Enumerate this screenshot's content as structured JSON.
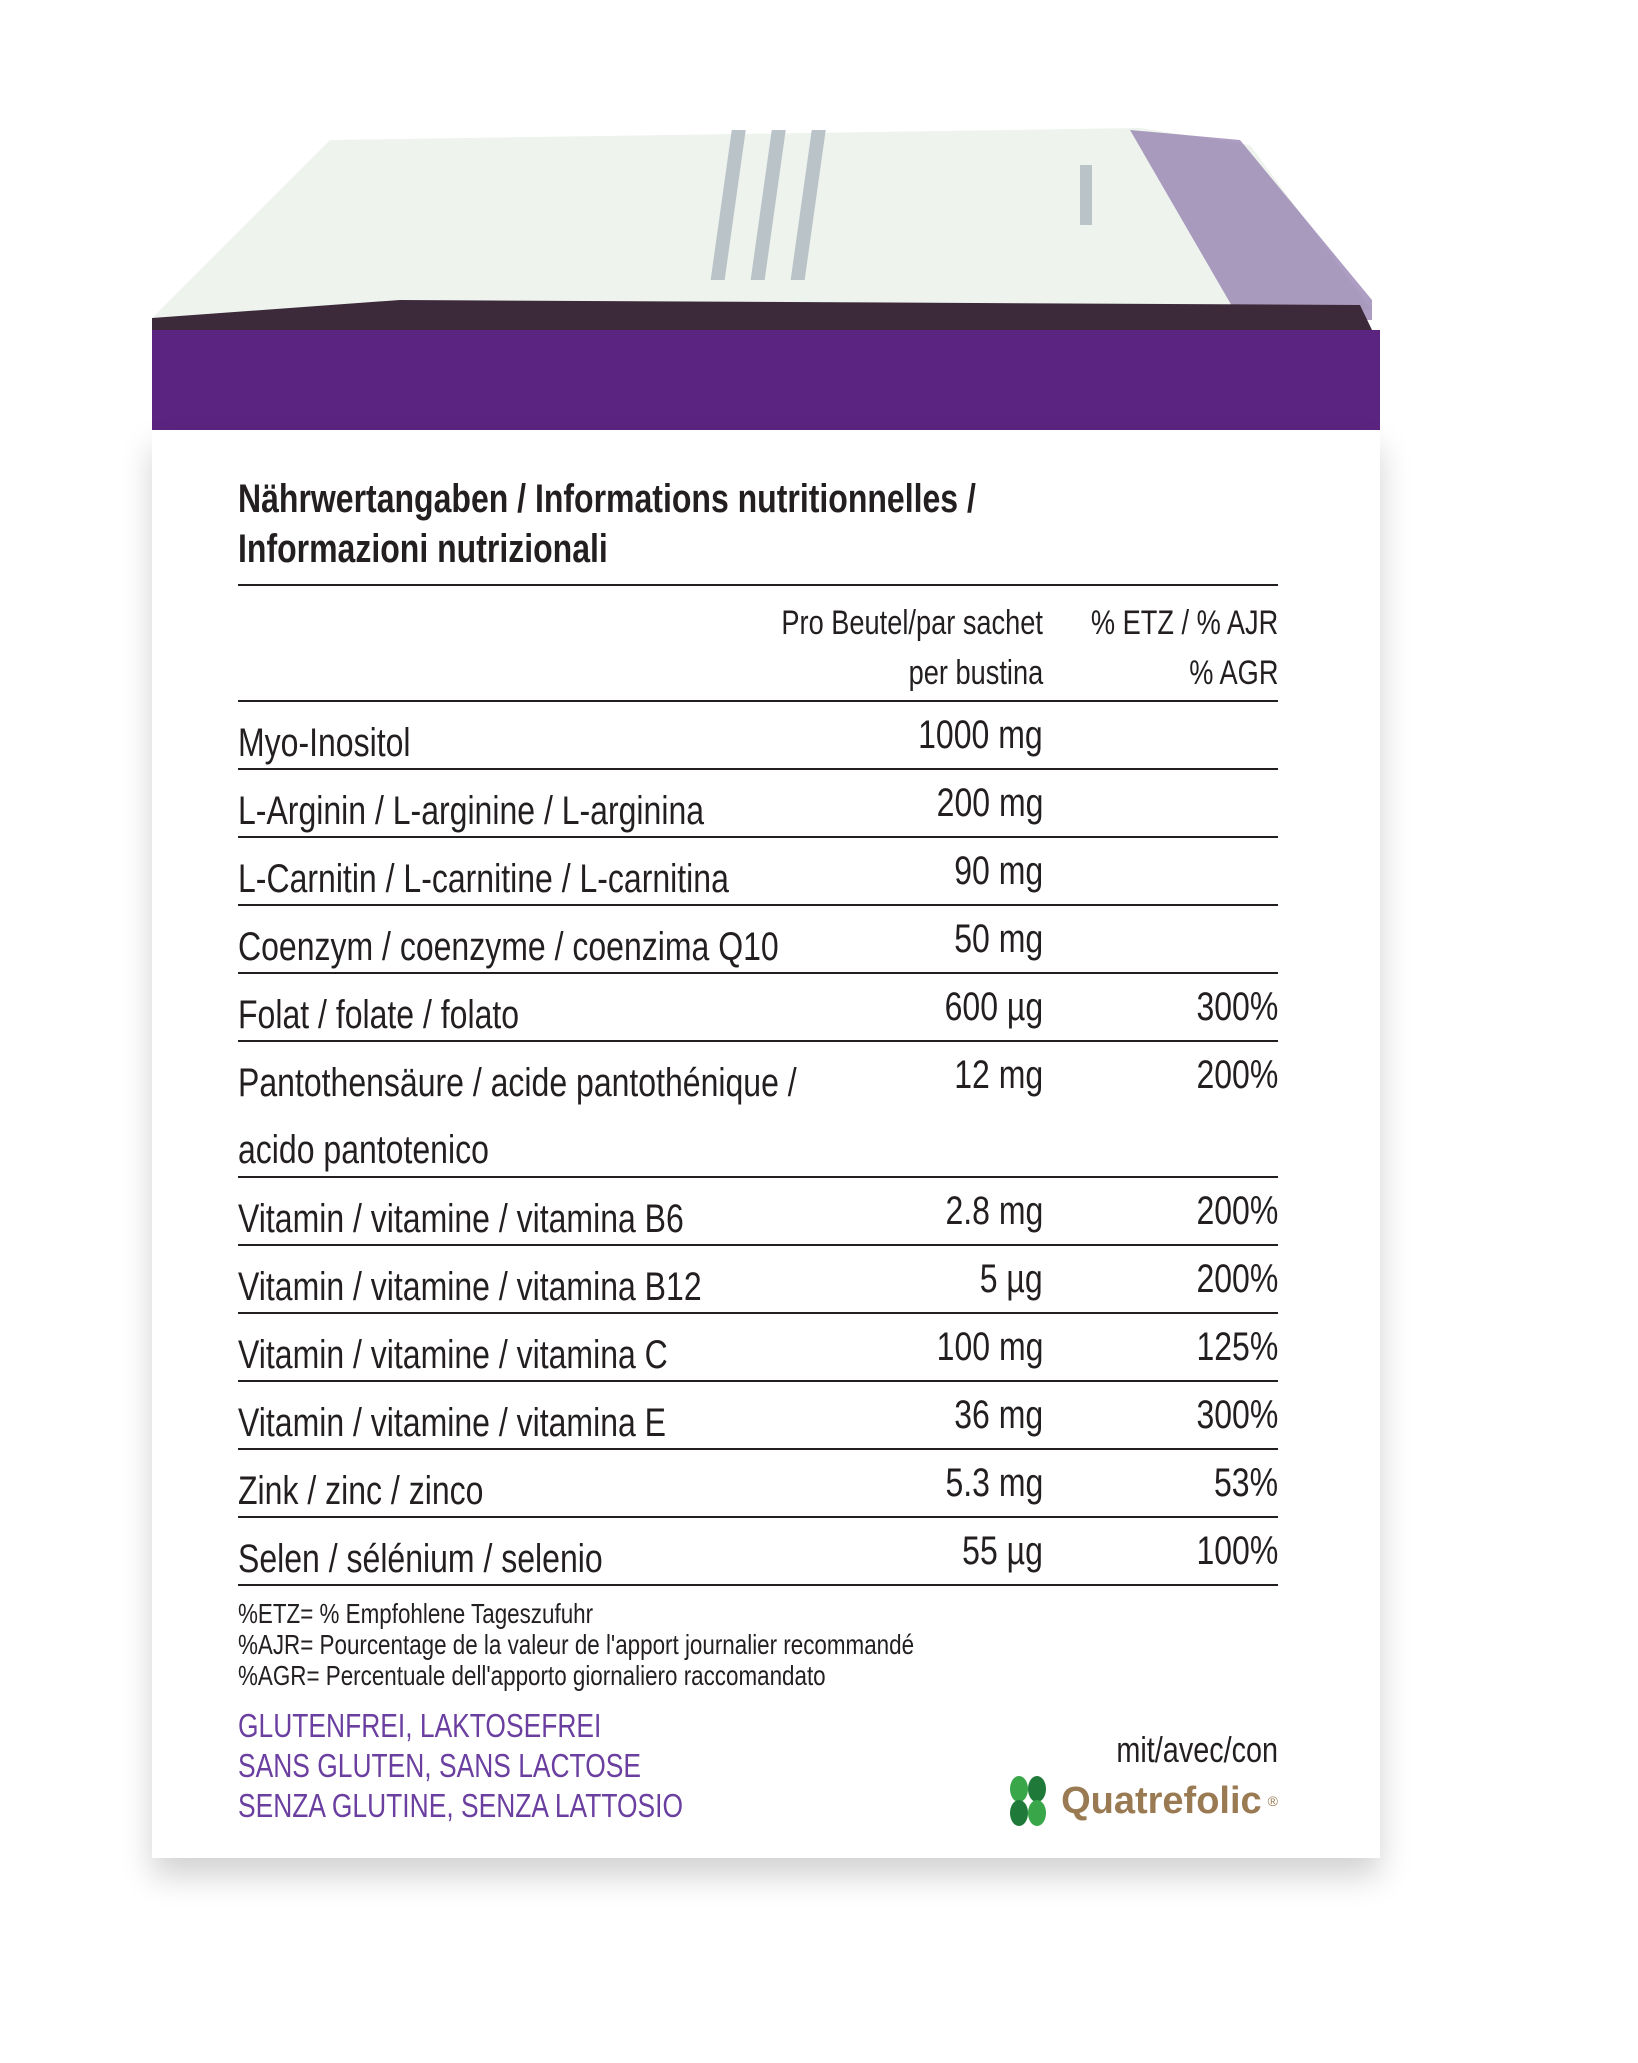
{
  "colors": {
    "purple_band": "#5b2480",
    "purple_text": "#6b3fa0",
    "logo_green": "#3aa64a",
    "logo_brown": "#9a7a52"
  },
  "title": {
    "line1": "Nährwertangaben / Informations nutritionnelles /",
    "line2": "Informazioni nutrizionali"
  },
  "table": {
    "header": {
      "col2_line1": "Pro Beutel/par sachet",
      "col2_line2": "per bustina",
      "col3_line1": "% ETZ / % AJR",
      "col3_line2": "% AGR"
    },
    "rows": [
      {
        "name": "Myo-Inositol",
        "amount": "1000 mg",
        "percent": ""
      },
      {
        "name": "L-Arginin / L-arginine / L-arginina",
        "amount": "200 mg",
        "percent": ""
      },
      {
        "name": "L-Carnitin / L-carnitine / L-carnitina",
        "amount": "90 mg",
        "percent": ""
      },
      {
        "name": "Coenzym / coenzyme / coenzima Q10",
        "amount": "50 mg",
        "percent": ""
      },
      {
        "name": "Folat / folate / folato",
        "amount": "600 µg",
        "percent": "300%"
      },
      {
        "name": "Pantothensäure / acide pantothénique /",
        "name2": "acido pantotenico",
        "amount": "12 mg",
        "percent": "200%"
      },
      {
        "name": "Vitamin / vitamine / vitamina B6",
        "amount": "2.8 mg",
        "percent": "200%"
      },
      {
        "name": "Vitamin / vitamine / vitamina B12",
        "amount": "5 µg",
        "percent": "200%"
      },
      {
        "name": "Vitamin / vitamine / vitamina C",
        "amount": "100 mg",
        "percent": "125%"
      },
      {
        "name": "Vitamin / vitamine / vitamina E",
        "amount": "36 mg",
        "percent": "300%"
      },
      {
        "name": "Zink / zinc / zinco",
        "amount": "5.3 mg",
        "percent": "53%"
      },
      {
        "name": "Selen / sélénium / selenio",
        "amount": "55 µg",
        "percent": "100%"
      }
    ]
  },
  "footnotes": [
    "%ETZ= % Empfohlene Tageszufuhr",
    "%AJR= Pourcentage de la valeur de l'apport journalier recommandé",
    "%AGR= Percentuale dell'apporto giornaliero raccomandato"
  ],
  "free_from": [
    "GLUTENFREI, LAKTOSEFREI",
    "SANS GLUTEN, SANS LACTOSE",
    "SENZA GLUTINE, SENZA LATTOSIO"
  ],
  "logo": {
    "prefix": "mit/avec/con",
    "brand": "Quatrefolic",
    "mark": "®",
    "icon": "clover-icon"
  }
}
